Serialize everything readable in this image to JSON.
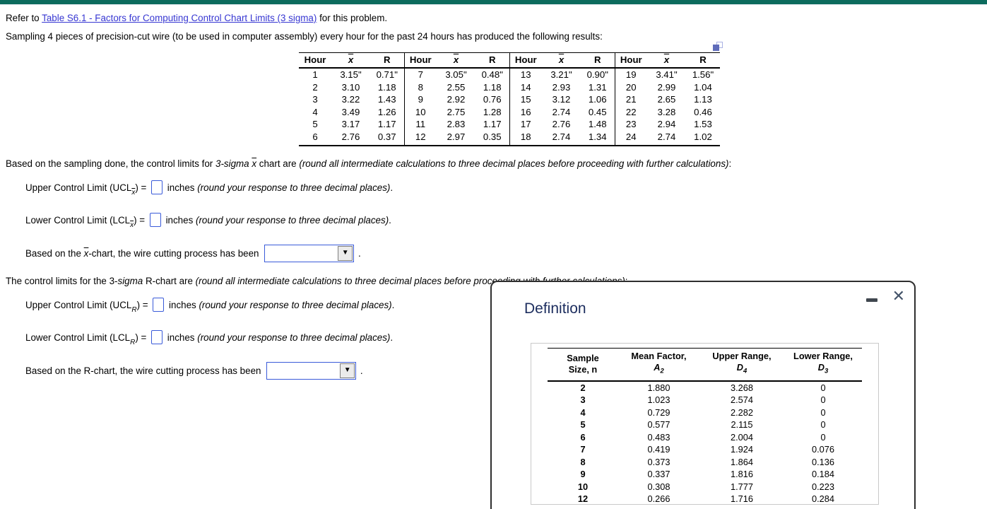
{
  "icons": {
    "close": "✕",
    "dropdown_arrow": "▼"
  },
  "intro": {
    "prefix": "Refer to ",
    "link": "Table S6.1 - Factors for Computing Control Chart Limits (3 sigma)",
    "suffix": " for this problem.",
    "sampling": "Sampling 4 pieces of precision-cut wire (to be used in computer assembly) every hour for the past 24 hours has produced the following results:"
  },
  "sample_table": {
    "headers": [
      "Hour",
      "x",
      "R"
    ],
    "groups": [
      {
        "rows": [
          [
            "1",
            "3.15\"",
            "0.71\""
          ],
          [
            "2",
            "3.10",
            "1.18"
          ],
          [
            "3",
            "3.22",
            "1.43"
          ],
          [
            "4",
            "3.49",
            "1.26"
          ],
          [
            "5",
            "3.17",
            "1.17"
          ],
          [
            "6",
            "2.76",
            "0.37"
          ]
        ]
      },
      {
        "rows": [
          [
            "7",
            "3.05\"",
            "0.48\""
          ],
          [
            "8",
            "2.55",
            "1.18"
          ],
          [
            "9",
            "2.92",
            "0.76"
          ],
          [
            "10",
            "2.75",
            "1.28"
          ],
          [
            "11",
            "2.83",
            "1.17"
          ],
          [
            "12",
            "2.97",
            "0.35"
          ]
        ]
      },
      {
        "rows": [
          [
            "13",
            "3.21\"",
            "0.90\""
          ],
          [
            "14",
            "2.93",
            "1.31"
          ],
          [
            "15",
            "3.12",
            "1.06"
          ],
          [
            "16",
            "2.74",
            "0.45"
          ],
          [
            "17",
            "2.76",
            "1.48"
          ],
          [
            "18",
            "2.74",
            "1.34"
          ]
        ]
      },
      {
        "rows": [
          [
            "19",
            "3.41\"",
            "1.56\""
          ],
          [
            "20",
            "2.99",
            "1.04"
          ],
          [
            "21",
            "2.65",
            "1.13"
          ],
          [
            "22",
            "3.28",
            "0.46"
          ],
          [
            "23",
            "2.94",
            "1.53"
          ],
          [
            "24",
            "2.74",
            "1.02"
          ]
        ]
      }
    ]
  },
  "q_xbar": {
    "lead": "Based on the sampling done, the control limits for ",
    "sigma": "3-sigma ",
    "xbar": "x",
    "mid": " chart are ",
    "paren": "(round all intermediate calculations to three decimal places before proceeding with further calculations)",
    "colon": ":",
    "ucl": {
      "pre": "Upper Control Limit (UCL",
      "sub": "x",
      "eq": ") = ",
      "after": " inches ",
      "paren": "(round your response to three decimal places)",
      "period": "."
    },
    "lcl": {
      "pre": "Lower Control Limit (LCL",
      "sub": "x",
      "eq": ") = ",
      "after": " inches ",
      "paren": "(round your response to three decimal places)",
      "period": "."
    },
    "conclusion": {
      "lead": "Based on the ",
      "x": "x",
      "rest": "-chart, the wire cutting process has been ",
      "period": "."
    }
  },
  "q_r": {
    "lead": "The control limits for the 3-",
    "sigma": "sigma",
    "mid": " R-chart are ",
    "paren": "(round all intermediate calculations to three decimal places before proceeding with further calculations)",
    "colon": ":",
    "ucl": {
      "pre": "Upper Control Limit (UCL",
      "sub": "R",
      "eq": ") = ",
      "after": " inches ",
      "paren": "(round your response to three decimal places)",
      "period": "."
    },
    "lcl": {
      "pre": "Lower Control Limit (LCL",
      "sub": "R",
      "eq": ") = ",
      "after": " inches ",
      "paren": "(round your response to three decimal places)",
      "period": "."
    },
    "conclusion": {
      "lead": "Based on the R-chart, the wire cutting process has been ",
      "period": "."
    }
  },
  "popup": {
    "title": "Definition",
    "factor_table": {
      "headers": [
        {
          "top": "Sample",
          "bottom": "Size, n",
          "sym": "",
          "sub": ""
        },
        {
          "top": "Mean Factor,",
          "bottom": "",
          "sym": "A",
          "sub": "2"
        },
        {
          "top": "Upper Range,",
          "bottom": "",
          "sym": "D",
          "sub": "4"
        },
        {
          "top": "Lower Range,",
          "bottom": "",
          "sym": "D",
          "sub": "3"
        }
      ],
      "rows": [
        [
          "2",
          "1.880",
          "3.268",
          "0"
        ],
        [
          "3",
          "1.023",
          "2.574",
          "0"
        ],
        [
          "4",
          "0.729",
          "2.282",
          "0"
        ],
        [
          "5",
          "0.577",
          "2.115",
          "0"
        ],
        [
          "6",
          "0.483",
          "2.004",
          "0"
        ],
        [
          "7",
          "0.419",
          "1.924",
          "0.076"
        ],
        [
          "8",
          "0.373",
          "1.864",
          "0.136"
        ],
        [
          "9",
          "0.337",
          "1.816",
          "0.184"
        ],
        [
          "10",
          "0.308",
          "1.777",
          "0.223"
        ],
        [
          "12",
          "0.266",
          "1.716",
          "0.284"
        ]
      ]
    }
  },
  "colors": {
    "topbar": "#0c6b5d",
    "link": "#3737d2",
    "input_border": "#3a5bd9",
    "popup_title": "#1c2d5e"
  }
}
